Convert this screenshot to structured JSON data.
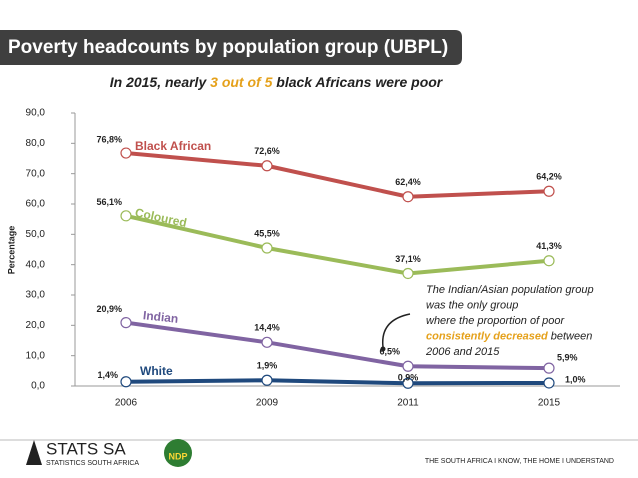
{
  "header": {
    "title": "Poverty headcounts by population group (UBPL)"
  },
  "chart_data": {
    "type": "line",
    "subtitle": [
      "In 2015, nearly ",
      "3 out of 5",
      " black Africans were poor"
    ],
    "y_label": "Percentage",
    "categories": [
      "2006",
      "2009",
      "2011",
      "2015"
    ],
    "ylim": [
      0,
      90
    ],
    "yticks": [
      {
        "value": 0,
        "label": "0,0"
      },
      {
        "value": 10,
        "label": "10,0"
      },
      {
        "value": 20,
        "label": "20,0"
      },
      {
        "value": 30,
        "label": "30,0"
      },
      {
        "value": 40,
        "label": "40,0"
      },
      {
        "value": 50,
        "label": "50,0"
      },
      {
        "value": 60,
        "label": "60,0"
      },
      {
        "value": 70,
        "label": "70,0"
      },
      {
        "value": 80,
        "label": "80,0"
      },
      {
        "value": 90,
        "label": "90,0"
      }
    ],
    "series": [
      {
        "name": "Black African",
        "color": "#c0504d",
        "values": [
          76.8,
          72.6,
          62.4,
          64.2
        ],
        "value_labels": [
          "76,8%",
          "72,6%",
          "62,4%",
          "64,2%"
        ]
      },
      {
        "name": "Coloured",
        "color": "#9bbb59",
        "values": [
          56.1,
          45.5,
          37.1,
          41.3
        ],
        "value_labels": [
          "56,1%",
          "45,5%",
          "37,1%",
          "41,3%"
        ]
      },
      {
        "name": "Indian",
        "color": "#8064a2",
        "values": [
          20.9,
          14.4,
          6.5,
          5.9
        ],
        "value_labels": [
          "20,9%",
          "14,4%",
          "6,5%",
          "5,9%"
        ]
      },
      {
        "name": "White",
        "color": "#1f497d",
        "values": [
          1.4,
          1.9,
          0.9,
          1.0
        ],
        "value_labels": [
          "1,4%",
          "1,9%",
          "0,9%",
          "1,0%"
        ]
      }
    ],
    "annotation": [
      [
        "The Indian/Asian population group"
      ],
      [
        "was the only group"
      ],
      [
        "where the proportion of poor"
      ],
      [
        "consistently decreased",
        " between"
      ],
      [
        "2006 and 2015"
      ]
    ]
  },
  "footer": {
    "logo": "STATS SA",
    "logo_sub": "STATISTICS SOUTH AFRICA",
    "ndp": "NDP",
    "slogan": "THE SOUTH AFRICA I KNOW, THE HOME I UNDERSTAND"
  }
}
